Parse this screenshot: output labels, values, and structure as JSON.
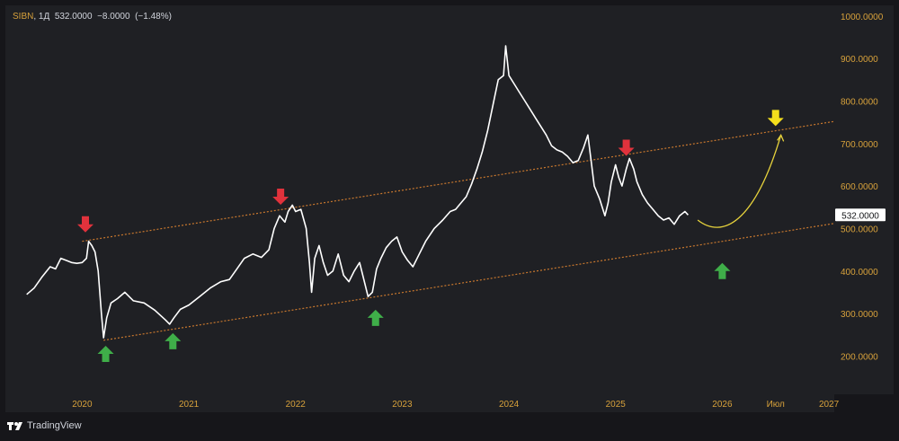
{
  "header": {
    "symbol": "SIBN",
    "interval": "1Д",
    "last": "532.0000",
    "change": "−8.0000",
    "change_pct": "(−1.48%)"
  },
  "footer": {
    "brand": "TradingView"
  },
  "colors": {
    "background": "#1f2024",
    "price_line": "#ffffff",
    "axis_text": "#d7a13b",
    "channel": "#c9782e",
    "projection": "#e6d23c",
    "arrow_down": "#e0323c",
    "arrow_up": "#3fae49",
    "arrow_target": "#f4df1c"
  },
  "chart_data": {
    "type": "line",
    "series": [
      {
        "values": [
          [
            2019.48,
            345
          ],
          [
            2019.55,
            360
          ],
          [
            2019.62,
            385
          ],
          [
            2019.7,
            410
          ],
          [
            2019.75,
            405
          ],
          [
            2019.8,
            430
          ],
          [
            2019.85,
            425
          ],
          [
            2019.9,
            420
          ],
          [
            2019.95,
            418
          ],
          [
            2020.0,
            420
          ],
          [
            2020.04,
            430
          ],
          [
            2020.06,
            470
          ],
          [
            2020.09,
            460
          ],
          [
            2020.12,
            445
          ],
          [
            2020.15,
            400
          ],
          [
            2020.18,
            300
          ],
          [
            2020.2,
            243
          ],
          [
            2020.23,
            290
          ],
          [
            2020.27,
            325
          ],
          [
            2020.33,
            335
          ],
          [
            2020.4,
            350
          ],
          [
            2020.48,
            330
          ],
          [
            2020.58,
            325
          ],
          [
            2020.68,
            308
          ],
          [
            2020.78,
            285
          ],
          [
            2020.82,
            275
          ],
          [
            2020.86,
            290
          ],
          [
            2020.92,
            310
          ],
          [
            2021.0,
            320
          ],
          [
            2021.1,
            340
          ],
          [
            2021.2,
            360
          ],
          [
            2021.3,
            375
          ],
          [
            2021.38,
            380
          ],
          [
            2021.45,
            405
          ],
          [
            2021.52,
            430
          ],
          [
            2021.6,
            440
          ],
          [
            2021.68,
            432
          ],
          [
            2021.75,
            450
          ],
          [
            2021.8,
            500
          ],
          [
            2021.85,
            530
          ],
          [
            2021.9,
            515
          ],
          [
            2021.93,
            540
          ],
          [
            2021.97,
            555
          ],
          [
            2022.0,
            540
          ],
          [
            2022.05,
            545
          ],
          [
            2022.1,
            500
          ],
          [
            2022.13,
            420
          ],
          [
            2022.15,
            350
          ],
          [
            2022.18,
            430
          ],
          [
            2022.22,
            460
          ],
          [
            2022.26,
            420
          ],
          [
            2022.3,
            390
          ],
          [
            2022.35,
            400
          ],
          [
            2022.4,
            440
          ],
          [
            2022.45,
            390
          ],
          [
            2022.5,
            375
          ],
          [
            2022.55,
            400
          ],
          [
            2022.6,
            420
          ],
          [
            2022.65,
            370
          ],
          [
            2022.68,
            340
          ],
          [
            2022.72,
            350
          ],
          [
            2022.76,
            405
          ],
          [
            2022.8,
            430
          ],
          [
            2022.85,
            455
          ],
          [
            2022.9,
            470
          ],
          [
            2022.95,
            480
          ],
          [
            2023.0,
            445
          ],
          [
            2023.05,
            425
          ],
          [
            2023.1,
            410
          ],
          [
            2023.15,
            435
          ],
          [
            2023.22,
            470
          ],
          [
            2023.3,
            500
          ],
          [
            2023.38,
            520
          ],
          [
            2023.45,
            540
          ],
          [
            2023.5,
            545
          ],
          [
            2023.55,
            560
          ],
          [
            2023.6,
            575
          ],
          [
            2023.65,
            605
          ],
          [
            2023.7,
            640
          ],
          [
            2023.75,
            680
          ],
          [
            2023.8,
            730
          ],
          [
            2023.85,
            790
          ],
          [
            2023.9,
            850
          ],
          [
            2023.95,
            860
          ],
          [
            2023.97,
            930
          ],
          [
            2024.0,
            860
          ],
          [
            2024.05,
            840
          ],
          [
            2024.1,
            820
          ],
          [
            2024.15,
            800
          ],
          [
            2024.2,
            780
          ],
          [
            2024.25,
            760
          ],
          [
            2024.3,
            740
          ],
          [
            2024.35,
            720
          ],
          [
            2024.4,
            695
          ],
          [
            2024.45,
            685
          ],
          [
            2024.5,
            680
          ],
          [
            2024.55,
            670
          ],
          [
            2024.6,
            655
          ],
          [
            2024.65,
            660
          ],
          [
            2024.7,
            690
          ],
          [
            2024.74,
            720
          ],
          [
            2024.77,
            660
          ],
          [
            2024.8,
            600
          ],
          [
            2024.85,
            570
          ],
          [
            2024.9,
            530
          ],
          [
            2024.93,
            560
          ],
          [
            2024.96,
            610
          ],
          [
            2025.0,
            650
          ],
          [
            2025.03,
            620
          ],
          [
            2025.06,
            600
          ],
          [
            2025.1,
            640
          ],
          [
            2025.13,
            665
          ],
          [
            2025.17,
            640
          ],
          [
            2025.2,
            610
          ],
          [
            2025.25,
            580
          ],
          [
            2025.3,
            560
          ],
          [
            2025.35,
            545
          ],
          [
            2025.4,
            530
          ],
          [
            2025.45,
            520
          ],
          [
            2025.5,
            525
          ],
          [
            2025.55,
            510
          ],
          [
            2025.6,
            530
          ],
          [
            2025.65,
            540
          ],
          [
            2025.68,
            532
          ]
        ]
      }
    ],
    "y_ticks": [
      "200.0000",
      "300.0000",
      "400.0000",
      "500.0000",
      "600.0000",
      "700.0000",
      "800.0000",
      "900.0000",
      "1000.0000"
    ],
    "x_ticks": [
      "2020",
      "2021",
      "2022",
      "2023",
      "2024",
      "2025",
      "2026",
      "Июл",
      "2027"
    ],
    "ylim": [
      110,
      1025
    ],
    "xlim": [
      2019.28,
      2027.05
    ],
    "last_price_label": "532.0000",
    "channel": {
      "upper": [
        [
          2020.0,
          470
        ],
        [
          2027.05,
          752
        ]
      ],
      "lower": [
        [
          2020.2,
          237
        ],
        [
          2027.05,
          512
        ]
      ]
    },
    "projection": [
      [
        2025.77,
        520
      ],
      [
        2026.0,
        475
      ],
      [
        2026.3,
        510
      ],
      [
        2026.55,
        720
      ]
    ],
    "arrows": [
      {
        "dir": "down",
        "kind": "red",
        "x": 2020.03,
        "y": 510
      },
      {
        "dir": "down",
        "kind": "red",
        "x": 2021.86,
        "y": 575
      },
      {
        "dir": "down",
        "kind": "red",
        "x": 2025.1,
        "y": 690
      },
      {
        "dir": "up",
        "kind": "green",
        "x": 2020.22,
        "y": 205
      },
      {
        "dir": "up",
        "kind": "green",
        "x": 2020.85,
        "y": 235
      },
      {
        "dir": "up",
        "kind": "green",
        "x": 2022.75,
        "y": 290
      },
      {
        "dir": "up",
        "kind": "green",
        "x": 2026.0,
        "y": 400
      },
      {
        "dir": "down",
        "kind": "yellow",
        "x": 2026.5,
        "y": 760
      }
    ]
  }
}
